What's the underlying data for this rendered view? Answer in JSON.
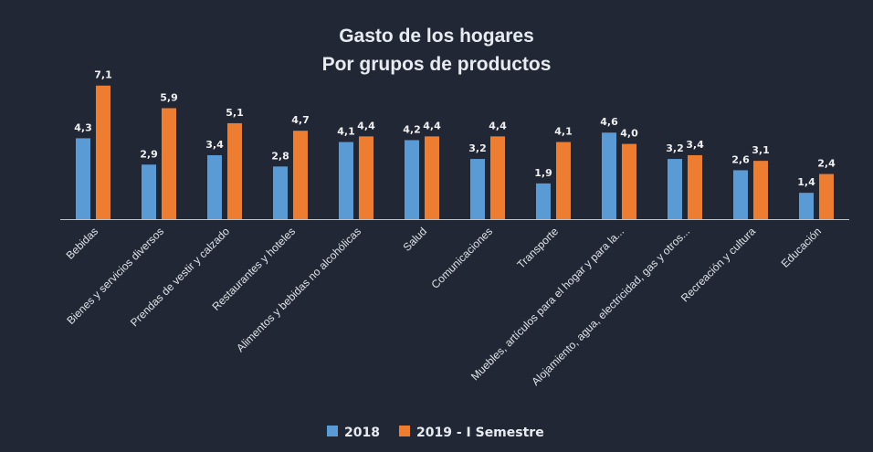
{
  "chart_data": {
    "type": "bar",
    "title": "Gasto de los hogares",
    "subtitle": "Por grupos de productos",
    "categories": [
      "Bebidas",
      "Bienes y servicios diversos",
      "Prendas de vestir y calzado",
      "Restaurantes y hoteles",
      "Alimentos y bebidas no alcohólicas",
      "Salud",
      "Comunicaciones",
      "Transporte",
      "Muebles, artículos para el hogar y para la...",
      "Alojamiento, agua, electricidad, gas y otros...",
      "Recreación y cultura",
      "Educación"
    ],
    "series": [
      {
        "name": "2018",
        "color": "#5b9bd5",
        "values": [
          4.3,
          2.9,
          3.4,
          2.8,
          4.1,
          4.2,
          3.2,
          1.9,
          4.6,
          3.2,
          2.6,
          1.4
        ],
        "labels": [
          "4,3",
          "2,9",
          "3,4",
          "2,8",
          "4,1",
          "4,2",
          "3,2",
          "1,9",
          "4,6",
          "3,2",
          "2,6",
          "1,4"
        ]
      },
      {
        "name": "2019 - I Semestre",
        "color": "#ed7d31",
        "values": [
          7.1,
          5.9,
          5.1,
          4.7,
          4.4,
          4.4,
          4.4,
          4.1,
          4.0,
          3.4,
          3.1,
          2.4
        ],
        "labels": [
          "7,1",
          "5,9",
          "5,1",
          "4,7",
          "4,4",
          "4,4",
          "4,4",
          "4,1",
          "4,0",
          "3,4",
          "3,1",
          "2,4"
        ]
      }
    ],
    "ylim": [
      0,
      7.5
    ],
    "grid": false,
    "legend_position": "bottom",
    "background": "#212735"
  }
}
